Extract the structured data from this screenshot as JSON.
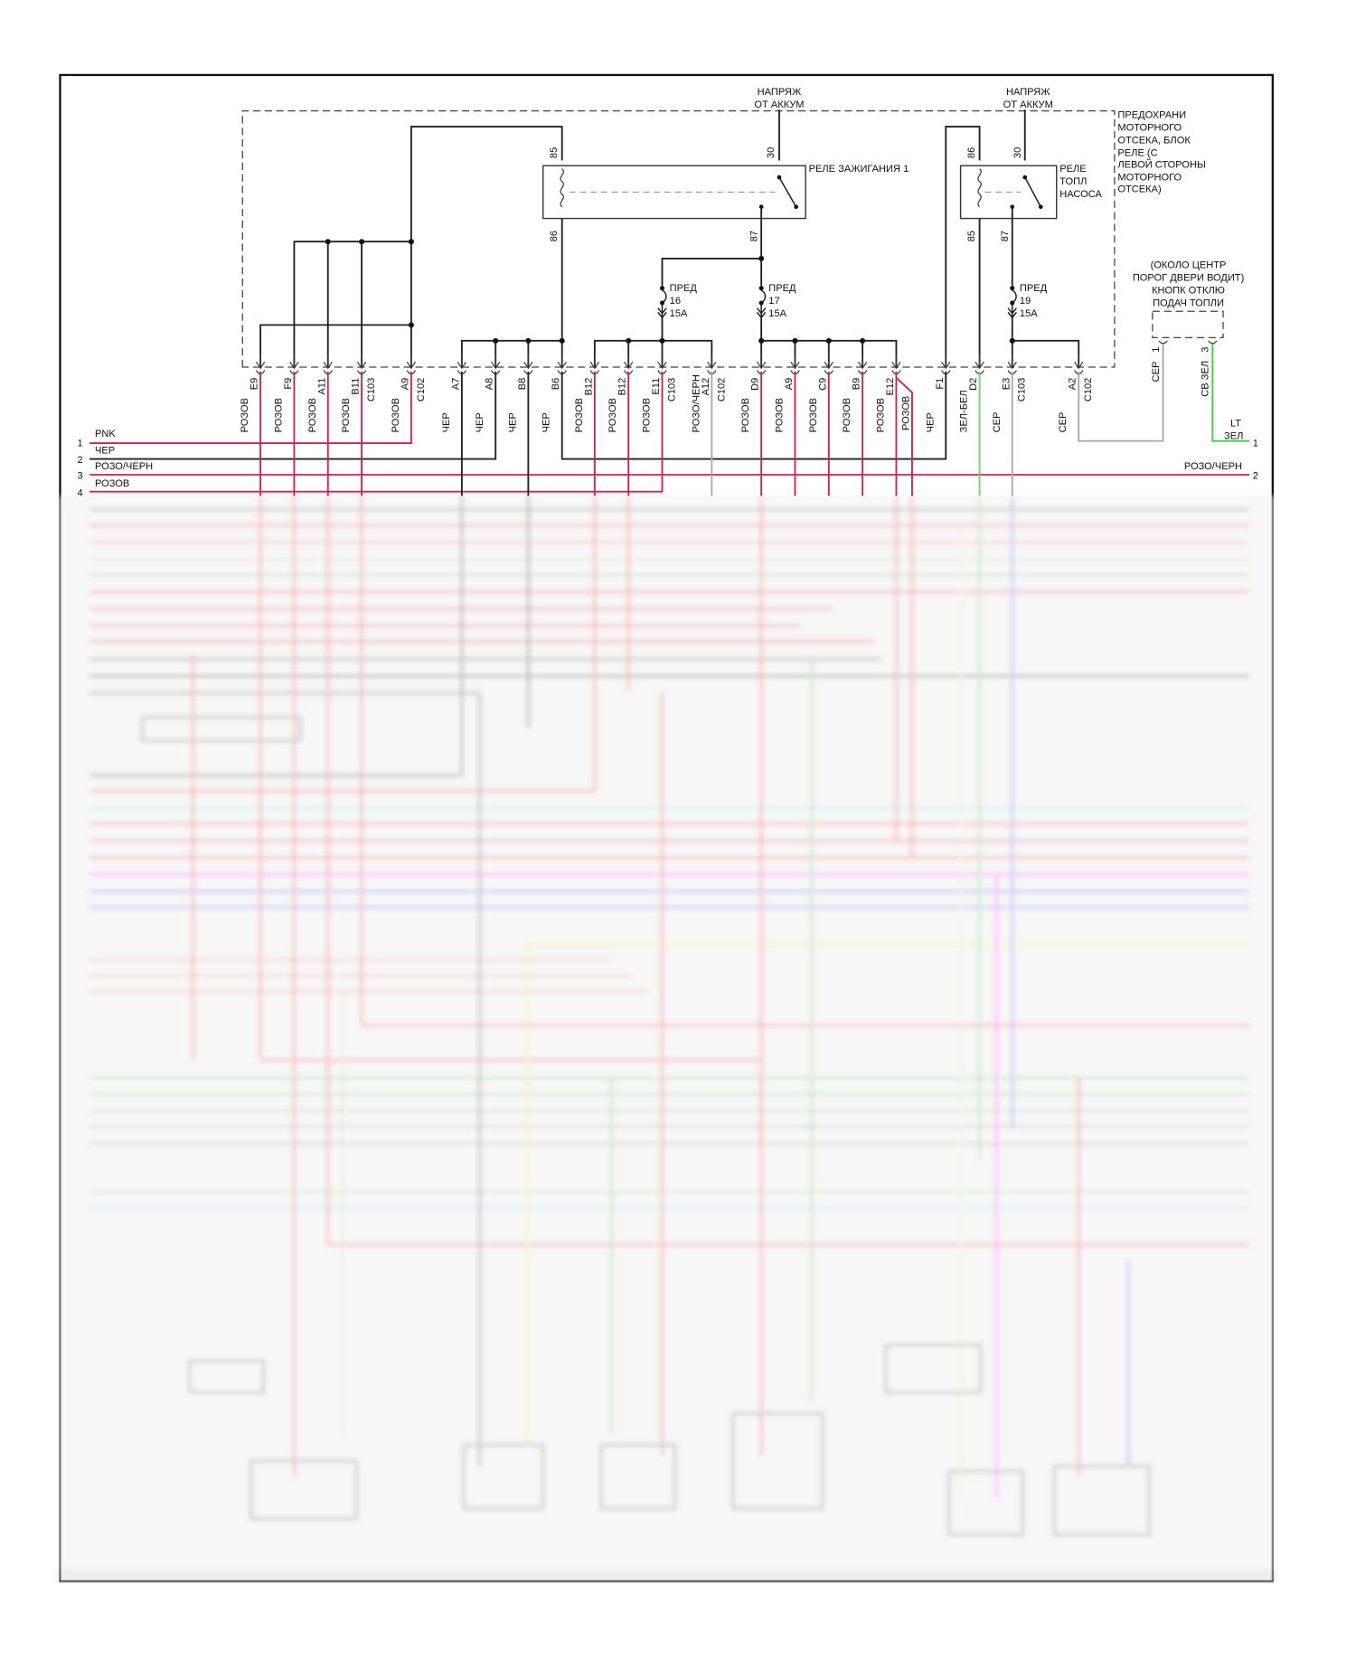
{
  "battery_feeds": [
    {
      "line1": "НАПРЯЖ",
      "line2": "ОТ АККУМ"
    },
    {
      "line1": "НАПРЯЖ",
      "line2": "ОТ АККУМ"
    }
  ],
  "fuse_block_label": [
    "ПРЕДОХРАНИ",
    "МОТОРНОГО",
    "ОТСЕКА, БЛОК",
    "РЕЛЕ (С",
    "ЛЕВОЙ СТОРОНЫ",
    "МОТОРНОГО",
    "ОТСЕКА)"
  ],
  "ignition_relay": {
    "label": "РЕЛЕ ЗАЖИГАНИЯ 1",
    "pins": {
      "p85": "85",
      "p30": "30",
      "p86": "86",
      "p87": "87"
    }
  },
  "fuel_pump_relay": {
    "label": [
      "РЕЛЕ",
      "ТОПЛ",
      "НАСОСА"
    ],
    "pins": {
      "p86": "86",
      "p30": "30",
      "p85": "85",
      "p87": "87"
    }
  },
  "fuses": [
    {
      "name": "ПРЕД",
      "number": "16",
      "rating": "15A"
    },
    {
      "name": "ПРЕД",
      "number": "17",
      "rating": "15A"
    },
    {
      "name": "ПРЕД",
      "number": "19",
      "rating": "15A"
    }
  ],
  "fuel_cutoff_switch": {
    "location": [
      "(ОКОЛО ЦЕНТР",
      "ПОРОГ ДВЕРИ ВОДИТ)",
      "КНОПК ОТКЛЮ",
      "ПОДАЧ ТОПЛИ"
    ],
    "pins": [
      {
        "pin": "1",
        "wire": "СЕР"
      },
      {
        "pin": "3",
        "wire": "СВ ЗЕЛ"
      }
    ],
    "output": {
      "line1": "LT",
      "line2": "ЗЕЛ",
      "number": "1"
    }
  },
  "connector_pins": [
    {
      "wire": "РОЗОВ",
      "pin": "E9",
      "connector": ""
    },
    {
      "wire": "РОЗОВ",
      "pin": "F9",
      "connector": ""
    },
    {
      "wire": "РОЗОВ",
      "pin": "A11",
      "connector": ""
    },
    {
      "wire": "РОЗОВ",
      "pin": "B11",
      "connector": "C103"
    },
    {
      "wire": "РОЗОВ",
      "pin": "A9",
      "connector": "C102"
    },
    {
      "wire": "ЧЕР",
      "pin": "A7",
      "connector": ""
    },
    {
      "wire": "ЧЕР",
      "pin": "A8",
      "connector": ""
    },
    {
      "wire": "ЧЕР",
      "pin": "B8",
      "connector": ""
    },
    {
      "wire": "ЧЕР",
      "pin": "B6",
      "connector": ""
    },
    {
      "wire": "РОЗОВ",
      "pin": "B12",
      "connector": ""
    },
    {
      "wire": "РОЗОВ",
      "pin": "B12",
      "connector": ""
    },
    {
      "wire": "РОЗОВ",
      "pin": "E11",
      "connector": "C103"
    },
    {
      "wire": "РОЗО/ЧЕРН",
      "pin": "A12",
      "connector": "C102"
    },
    {
      "wire": "РОЗОВ",
      "pin": "D9",
      "connector": ""
    },
    {
      "wire": "РОЗОВ",
      "pin": "A9",
      "connector": ""
    },
    {
      "wire": "РОЗОВ",
      "pin": "C9",
      "connector": ""
    },
    {
      "wire": "РОЗОВ",
      "pin": "B9",
      "connector": ""
    },
    {
      "wire": "РОЗОВ",
      "pin": "E12",
      "connector": ""
    },
    {
      "wire": "ЧЕР",
      "pin": "F1",
      "connector": ""
    },
    {
      "wire": "ЗЕЛ-БЕЛ",
      "pin": "D2",
      "connector": ""
    },
    {
      "wire": "СЕР",
      "pin": "E3",
      "connector": "C103"
    },
    {
      "wire": "СЕР",
      "pin": "A2",
      "connector": "C102"
    }
  ],
  "extra_wire_label": "РОЗОВ",
  "bus_rows": [
    {
      "number": "1",
      "label": "PNK"
    },
    {
      "number": "2",
      "label": "ЧЕР"
    },
    {
      "number": "3",
      "label": "РОЗО/ЧЕРН"
    },
    {
      "number": "4",
      "label": "РОЗОВ"
    }
  ],
  "right_output": {
    "label": "РОЗО/ЧЕРН",
    "number": "2"
  },
  "colors": {
    "pink": "#d0234f",
    "black": "#222222",
    "gray": "#aaaaaa",
    "green": "#3ad13a",
    "light_green": "#6fd46f"
  }
}
